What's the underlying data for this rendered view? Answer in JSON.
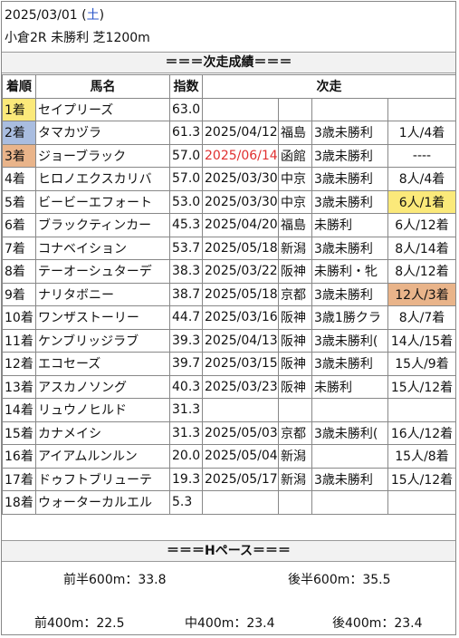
{
  "header": {
    "date": "2025/03/01",
    "dow": "土",
    "race": "小倉2R 未勝利 芝1200m"
  },
  "section_title": "＝＝＝次走成績＝＝＝",
  "columns": {
    "rank": "着順",
    "horse": "馬名",
    "index": "指数",
    "next": "次走"
  },
  "rows": [
    {
      "rank": "1着",
      "horse": "セイプリーズ",
      "index": "63.0",
      "date": "",
      "track": "",
      "race": "",
      "result": ""
    },
    {
      "rank": "2着",
      "horse": "タマカヅラ",
      "index": "61.3",
      "date": "2025/04/12",
      "track": "福島",
      "race": "3歳未勝利",
      "result": "1人/4着"
    },
    {
      "rank": "3着",
      "horse": "ジョーブラック",
      "index": "57.0",
      "date": "2025/06/14",
      "track": "函館",
      "race": "3歳未勝利",
      "result": "----"
    },
    {
      "rank": "4着",
      "horse": "ヒロノエクスカリバ",
      "index": "57.0",
      "date": "2025/03/30",
      "track": "中京",
      "race": "3歳未勝利",
      "result": "8人/4着"
    },
    {
      "rank": "5着",
      "horse": "ビービーエフォート",
      "index": "53.0",
      "date": "2025/03/30",
      "track": "中京",
      "race": "3歳未勝利",
      "result": "6人/1着"
    },
    {
      "rank": "6着",
      "horse": "ブラックティンカー",
      "index": "45.3",
      "date": "2025/04/20",
      "track": "福島",
      "race": "未勝利",
      "result": "6人/12着"
    },
    {
      "rank": "7着",
      "horse": "コナベイション",
      "index": "53.7",
      "date": "2025/05/18",
      "track": "新潟",
      "race": "3歳未勝利",
      "result": "8人/14着"
    },
    {
      "rank": "8着",
      "horse": "テーオーシュターデ",
      "index": "38.3",
      "date": "2025/03/22",
      "track": "阪神",
      "race": "未勝利・牝",
      "result": "8人/12着"
    },
    {
      "rank": "9着",
      "horse": "ナリタボニー",
      "index": "38.7",
      "date": "2025/05/18",
      "track": "京都",
      "race": "3歳未勝利",
      "result": "12人/3着"
    },
    {
      "rank": "10着",
      "horse": "ワンザストーリー",
      "index": "44.7",
      "date": "2025/03/16",
      "track": "阪神",
      "race": "3歳1勝クラ",
      "result": "8人/7着"
    },
    {
      "rank": "11着",
      "horse": "ケンブリッジラブ",
      "index": "39.3",
      "date": "2025/04/13",
      "track": "阪神",
      "race": "3歳未勝利(",
      "result": "14人/15着"
    },
    {
      "rank": "12着",
      "horse": "エコセーズ",
      "index": "39.7",
      "date": "2025/03/15",
      "track": "阪神",
      "race": "3歳未勝利",
      "result": "15人/9着"
    },
    {
      "rank": "13着",
      "horse": "アスカノソング",
      "index": "40.3",
      "date": "2025/03/23",
      "track": "阪神",
      "race": "未勝利",
      "result": "15人/12着"
    },
    {
      "rank": "14着",
      "horse": "リュウノヒルド",
      "index": "31.3",
      "date": "",
      "track": "",
      "race": "",
      "result": ""
    },
    {
      "rank": "15着",
      "horse": "カナメイシ",
      "index": "31.3",
      "date": "2025/05/03",
      "track": "京都",
      "race": "3歳未勝利(",
      "result": "16人/12着"
    },
    {
      "rank": "16着",
      "horse": "アイアムルンルン",
      "index": "20.0",
      "date": "2025/05/04",
      "track": "新潟",
      "race": "",
      "result": "15人/8着"
    },
    {
      "rank": "17着",
      "horse": "ドゥフトブリューテ",
      "index": "19.3",
      "date": "2025/05/17",
      "track": "新潟",
      "race": "3歳未勝利",
      "result": "15人/12着"
    },
    {
      "rank": "18着",
      "horse": "ウォーターカルエル",
      "index": "5.3",
      "date": "",
      "track": "",
      "race": "",
      "result": ""
    }
  ],
  "pace": {
    "title": "＝＝＝Hペース＝＝＝",
    "first_half": "前半600m：33.8",
    "second_half": "後半600m：35.5",
    "front400": "前400m：22.5",
    "mid400": "中400m：23.4",
    "back400": "後400m：23.4"
  },
  "colors": {
    "gold": "#fbe97a",
    "silver": "#a9bde0",
    "bronze": "#e9b48a",
    "red_date": "#e03030",
    "dow_blue": "#2855c8"
  },
  "highlights": {
    "rank_colors": [
      "gold",
      "silver",
      "bronze"
    ],
    "red_date_row": 2,
    "win_result_row": 4,
    "place_result_row": 8
  }
}
